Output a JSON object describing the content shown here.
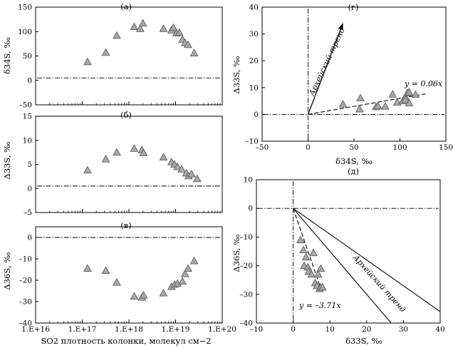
{
  "chart_data": [
    {
      "id": "a",
      "type": "scatter",
      "panel_label": "(а)",
      "ylabel": "δ34S, ‰",
      "xscale": "log",
      "xlim": [
        1e+16,
        1e+20
      ],
      "ylim": [
        -50,
        150
      ],
      "yticks": [
        -50,
        0,
        50,
        100,
        150
      ],
      "ytick_labels": [
        "–50",
        "0",
        "50",
        "100",
        "150"
      ],
      "marker": "triangle",
      "marker_color": "#a8a8a8",
      "reference_line": {
        "y": 5,
        "style": "dash-dot"
      },
      "points": [
        {
          "x": 1.3e+17,
          "y": 38
        },
        {
          "x": 3.2e+17,
          "y": 57
        },
        {
          "x": 5.5e+17,
          "y": 92
        },
        {
          "x": 1.3e+18,
          "y": 110
        },
        {
          "x": 1.75e+18,
          "y": 106
        },
        {
          "x": 2e+18,
          "y": 117
        },
        {
          "x": 5.5e+18,
          "y": 106
        },
        {
          "x": 8.2e+18,
          "y": 103
        },
        {
          "x": 9e+18,
          "y": 108
        },
        {
          "x": 1.05e+19,
          "y": 97
        },
        {
          "x": 1.2e+19,
          "y": 98
        },
        {
          "x": 1.4e+19,
          "y": 84
        },
        {
          "x": 1.6e+19,
          "y": 77
        },
        {
          "x": 1.85e+19,
          "y": 73
        },
        {
          "x": 2.5e+19,
          "y": 56
        }
      ]
    },
    {
      "id": "b",
      "type": "scatter",
      "panel_label": "(б)",
      "ylabel": "Δ33S, ‰",
      "xscale": "log",
      "xlim": [
        1e+16,
        1e+20
      ],
      "ylim": [
        -5,
        15
      ],
      "yticks": [
        -5,
        0,
        5,
        10,
        15
      ],
      "ytick_labels": [
        "–5",
        "0",
        "5",
        "10",
        "15"
      ],
      "marker": "triangle",
      "marker_color": "#a8a8a8",
      "reference_line": {
        "y": 0.5,
        "style": "dash-dot"
      },
      "points": [
        {
          "x": 1.3e+17,
          "y": 3.8
        },
        {
          "x": 3.2e+17,
          "y": 6.1
        },
        {
          "x": 5.5e+17,
          "y": 7.5
        },
        {
          "x": 1.3e+18,
          "y": 8.3
        },
        {
          "x": 1.9e+18,
          "y": 8.0
        },
        {
          "x": 2.05e+18,
          "y": 7.4
        },
        {
          "x": 5.5e+18,
          "y": 6.5
        },
        {
          "x": 8.2e+18,
          "y": 5.5
        },
        {
          "x": 9.5e+18,
          "y": 5.0
        },
        {
          "x": 1.1e+19,
          "y": 4.5
        },
        {
          "x": 1.35e+19,
          "y": 4.0
        },
        {
          "x": 1.7e+19,
          "y": 3.2
        },
        {
          "x": 1.9e+19,
          "y": 2.6
        },
        {
          "x": 2.2e+19,
          "y": 3.0
        },
        {
          "x": 2.9e+19,
          "y": 2.0
        }
      ]
    },
    {
      "id": "c",
      "type": "scatter",
      "panel_label": "(в)",
      "ylabel": "Δ36S, ‰",
      "xlabel": "SO2 плотность колонки, молекул см−2",
      "xscale": "log",
      "xlim": [
        1e+16,
        1e+20
      ],
      "ylim": [
        -40,
        5
      ],
      "yticks": [
        -40,
        -30,
        -20,
        -10,
        0
      ],
      "ytick_labels": [
        "–40",
        "–30",
        "–20",
        "–10",
        "0"
      ],
      "xtick_labels": [
        "1.E+16",
        "1.E+17",
        "1.E+18",
        "1.E+19",
        "1.E+20"
      ],
      "marker": "triangle",
      "marker_color": "#a8a8a8",
      "reference_line": {
        "y": 0,
        "style": "dash-dot"
      },
      "points": [
        {
          "x": 1.3e+17,
          "y": -14.5
        },
        {
          "x": 3.2e+17,
          "y": -15.5
        },
        {
          "x": 5.5e+17,
          "y": -21
        },
        {
          "x": 1.3e+18,
          "y": -27.5
        },
        {
          "x": 1.9e+18,
          "y": -28
        },
        {
          "x": 2.05e+18,
          "y": -27
        },
        {
          "x": 5.5e+18,
          "y": -26
        },
        {
          "x": 8.2e+18,
          "y": -23
        },
        {
          "x": 9.5e+18,
          "y": -22
        },
        {
          "x": 1.1e+19,
          "y": -21.5
        },
        {
          "x": 1.4e+19,
          "y": -20.5
        },
        {
          "x": 1.6e+19,
          "y": -17
        },
        {
          "x": 1.85e+19,
          "y": -14.5
        },
        {
          "x": 2.5e+19,
          "y": -11
        }
      ]
    },
    {
      "id": "g",
      "type": "scatter",
      "panel_label": "(г)",
      "xlabel": "δ34S, ‰",
      "ylabel": "Δ33S, ‰",
      "xlim": [
        -50,
        150
      ],
      "ylim": [
        -10,
        40
      ],
      "xticks": [
        -50,
        0,
        50,
        100,
        150
      ],
      "xtick_labels": [
        "–50",
        "0",
        "50",
        "100",
        "150"
      ],
      "yticks": [
        -10,
        0,
        10,
        20,
        30,
        40
      ],
      "ytick_labels": [
        "–10",
        "0",
        "10",
        "20",
        "30",
        "40"
      ],
      "marker": "triangle",
      "marker_color": "#a8a8a8",
      "fit_line": {
        "label": "y = 0.06x",
        "slope": 0.06,
        "x_range": [
          0,
          128
        ]
      },
      "trend_arrow": {
        "label": "Архейский тренд",
        "from": [
          0,
          0
        ],
        "to": [
          38,
          34
        ]
      },
      "points": [
        {
          "x": 38,
          "y": 3.8
        },
        {
          "x": 57,
          "y": 6.1
        },
        {
          "x": 56,
          "y": 2.0
        },
        {
          "x": 74,
          "y": 2.8
        },
        {
          "x": 76,
          "y": 3.2
        },
        {
          "x": 92,
          "y": 7.5
        },
        {
          "x": 97,
          "y": 4.5
        },
        {
          "x": 103,
          "y": 5.0
        },
        {
          "x": 106,
          "y": 6.5
        },
        {
          "x": 106,
          "y": 5.5
        },
        {
          "x": 108,
          "y": 8.0
        },
        {
          "x": 110,
          "y": 8.3
        },
        {
          "x": 110,
          "y": 4.2
        },
        {
          "x": 117,
          "y": 7.4
        },
        {
          "x": 84,
          "y": 3.0
        }
      ]
    },
    {
      "id": "d",
      "type": "scatter",
      "panel_label": "(д)",
      "xlabel": "δ33S, ‰",
      "ylabel": "Δ36S, ‰",
      "xlim": [
        -10,
        40
      ],
      "ylim": [
        -40,
        10
      ],
      "xticks": [
        -10,
        0,
        10,
        20,
        30,
        40
      ],
      "xtick_labels": [
        "–10",
        "0",
        "10",
        "20",
        "30",
        "40"
      ],
      "yticks": [
        -40,
        -30,
        -20,
        -10,
        0,
        10
      ],
      "ytick_labels": [
        "–40",
        "–30",
        "–20",
        "–10",
        "0",
        "10"
      ],
      "marker": "triangle",
      "marker_color": "#a8a8a8",
      "fit_line": {
        "label": "y = –3.71x",
        "slope": -3.71,
        "x_range": [
          0,
          8
        ]
      },
      "trend_label": "Архейский тренд",
      "trend_lines": [
        {
          "slope": -0.9,
          "x_range": [
            0,
            40
          ]
        },
        {
          "slope": -1.5,
          "x_range": [
            0,
            26.7
          ]
        }
      ],
      "points": [
        {
          "x": 2.0,
          "y": -11
        },
        {
          "x": 2.8,
          "y": -14.5
        },
        {
          "x": 3.5,
          "y": -17
        },
        {
          "x": 3.0,
          "y": -20
        },
        {
          "x": 4.0,
          "y": -20.5
        },
        {
          "x": 4.2,
          "y": -22
        },
        {
          "x": 5.0,
          "y": -23
        },
        {
          "x": 5.5,
          "y": -15.5
        },
        {
          "x": 6.0,
          "y": -26
        },
        {
          "x": 6.5,
          "y": -27
        },
        {
          "x": 7.2,
          "y": -28
        },
        {
          "x": 7.5,
          "y": -27.5
        },
        {
          "x": 7.5,
          "y": -21
        },
        {
          "x": 8.0,
          "y": -27.5
        },
        {
          "x": 6.8,
          "y": -23
        }
      ]
    }
  ]
}
